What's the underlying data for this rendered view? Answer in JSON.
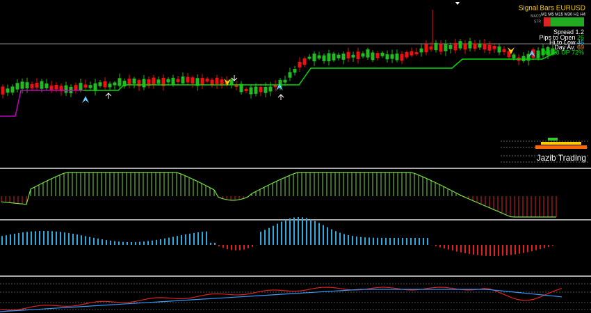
{
  "header": {
    "title": "Signal Bars EURUSD",
    "timeframes": "M1 M5 M15 M30 H1 H4",
    "rows": [
      "MACD",
      "STR"
    ]
  },
  "stats": [
    {
      "label": "Spread",
      "value": "1.2"
    },
    {
      "label": "Pips to Open",
      "value": "26"
    },
    {
      "label": "Hi to Low",
      "value": "46"
    },
    {
      "label": "Day Av.",
      "value": "69"
    }
  ],
  "direction": "DN 28 UP 72%",
  "brand": "Jazib Trading"
}
